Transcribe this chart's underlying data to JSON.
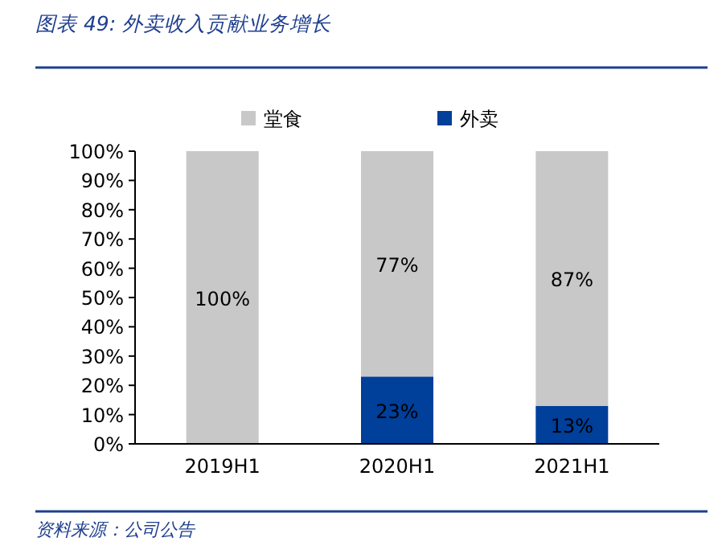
{
  "chart_data": {
    "type": "bar",
    "title": "图表 49: 外卖收入贡献业务增长",
    "annotations": [
      "资料来源：公司公告"
    ],
    "categories": [
      "2019H1",
      "2020H1",
      "2021H1"
    ],
    "stacked": true,
    "series": [
      {
        "name": "外卖",
        "color": "#003f9a",
        "values": [
          0,
          23,
          13
        ],
        "value_labels": [
          null,
          "23%",
          "13%"
        ]
      },
      {
        "name": "堂食",
        "color": "#c8c8c8",
        "values": [
          100,
          77,
          87
        ],
        "value_labels": [
          "100%",
          "77%",
          "87%"
        ]
      }
    ],
    "ylim": [
      0,
      100
    ],
    "yticks": [
      {
        "value": 0,
        "label": "0%"
      },
      {
        "value": 10,
        "label": "10%"
      },
      {
        "value": 20,
        "label": "20%"
      },
      {
        "value": 30,
        "label": "30%"
      },
      {
        "value": 40,
        "label": "40%"
      },
      {
        "value": 50,
        "label": "50%"
      },
      {
        "value": 60,
        "label": "60%"
      },
      {
        "value": 70,
        "label": "70%"
      },
      {
        "value": 80,
        "label": "80%"
      },
      {
        "value": 90,
        "label": "90%"
      },
      {
        "value": 100,
        "label": "100%"
      }
    ],
    "legend": "top"
  }
}
